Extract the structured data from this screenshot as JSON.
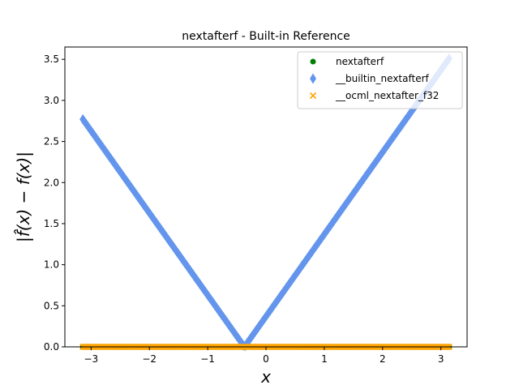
{
  "chart_data": {
    "type": "scatter",
    "title": "nextafterf - Built-in Reference",
    "xlabel": "x",
    "ylabel": "|f̂(x) − f(x)|",
    "xlim": [
      -3.45,
      3.45
    ],
    "ylim": [
      0,
      3.65
    ],
    "xticks": [
      -3,
      -2,
      -1,
      0,
      1,
      2,
      3
    ],
    "xtick_labels": [
      "−3",
      "−2",
      "−1",
      "0",
      "1",
      "2",
      "3"
    ],
    "yticks": [
      0.0,
      0.5,
      1.0,
      1.5,
      2.0,
      2.5,
      3.0,
      3.5
    ],
    "ytick_labels": [
      "0.0",
      "0.5",
      "1.0",
      "1.5",
      "2.0",
      "2.5",
      "3.0",
      "3.5"
    ],
    "grid": false,
    "legend_position": "top-right",
    "series": [
      {
        "name": "nextafterf",
        "marker": "circle",
        "color": "#008000",
        "x": [
          -3.14159,
          3.14159
        ],
        "y": [
          0,
          0
        ],
        "shape": "zero"
      },
      {
        "name": "__builtin_nextafterf",
        "marker": "diamond",
        "color": "#6495ED",
        "x": [
          -3.14159,
          -0.37,
          3.14159
        ],
        "y": [
          2.77,
          0.0,
          3.51
        ],
        "shape": "abs-v"
      },
      {
        "name": "__ocml_nextafter_f32",
        "marker": "x",
        "color": "#FFA500",
        "x": [
          -3.14159,
          3.14159
        ],
        "y": [
          0,
          0
        ],
        "shape": "zero"
      }
    ]
  }
}
